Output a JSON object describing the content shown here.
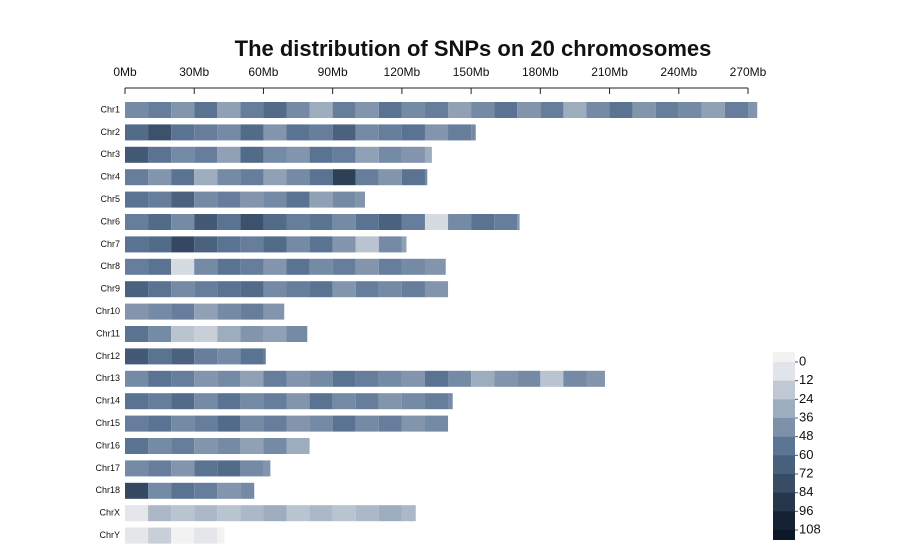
{
  "chart_data": {
    "type": "chromosome-density",
    "title": "The distribution of SNPs on 20 chromosomes",
    "xlim": [
      0,
      270
    ],
    "xticks": [
      {
        "value": 0,
        "label": "0Mb"
      },
      {
        "value": 30,
        "label": "30Mb"
      },
      {
        "value": 60,
        "label": "60Mb"
      },
      {
        "value": 90,
        "label": "90Mb"
      },
      {
        "value": 120,
        "label": "120Mb"
      },
      {
        "value": 150,
        "label": "150Mb"
      },
      {
        "value": 180,
        "label": "180Mb"
      },
      {
        "value": 210,
        "label": "210Mb"
      },
      {
        "value": 240,
        "label": "240Mb"
      },
      {
        "value": 270,
        "label": "270Mb"
      }
    ],
    "bin_size": 10,
    "colors": [
      "#f2f2f2",
      "#5b7595",
      "#0c1828"
    ],
    "legend_ticks": [
      0,
      12,
      24,
      36,
      48,
      60,
      72,
      84,
      96,
      108
    ],
    "chromosomes": [
      {
        "name": "Chr1",
        "length": 274,
        "density": [
          45,
          50,
          40,
          55,
          35,
          50,
          60,
          45,
          30,
          50,
          40,
          55,
          45,
          50,
          35,
          45,
          55,
          40,
          50,
          30,
          45,
          55,
          40,
          50,
          45,
          35,
          50,
          40
        ]
      },
      {
        "name": "Chr2",
        "length": 152,
        "density": [
          60,
          75,
          55,
          50,
          45,
          60,
          40,
          55,
          50,
          65,
          45,
          50,
          55,
          40,
          50,
          45
        ]
      },
      {
        "name": "Chr3",
        "length": 133,
        "density": [
          70,
          55,
          45,
          50,
          35,
          60,
          45,
          40,
          55,
          50,
          35,
          45,
          40,
          30
        ]
      },
      {
        "name": "Chr4",
        "length": 131,
        "density": [
          50,
          40,
          55,
          30,
          45,
          50,
          35,
          45,
          55,
          85,
          50,
          40,
          55,
          45
        ]
      },
      {
        "name": "Chr5",
        "length": 104,
        "density": [
          55,
          50,
          65,
          45,
          50,
          40,
          45,
          55,
          35,
          45,
          40
        ]
      },
      {
        "name": "Chr6",
        "length": 171,
        "density": [
          50,
          60,
          45,
          70,
          55,
          75,
          60,
          50,
          55,
          45,
          55,
          65,
          50,
          10,
          45,
          55,
          50,
          40
        ]
      },
      {
        "name": "Chr7",
        "length": 122,
        "density": [
          55,
          60,
          80,
          65,
          55,
          50,
          60,
          45,
          55,
          40,
          20,
          45,
          35
        ]
      },
      {
        "name": "Chr8",
        "length": 139,
        "density": [
          50,
          55,
          10,
          45,
          55,
          50,
          40,
          55,
          45,
          50,
          40,
          50,
          45,
          40
        ]
      },
      {
        "name": "Chr9",
        "length": 140,
        "density": [
          65,
          55,
          45,
          50,
          55,
          60,
          45,
          50,
          55,
          40,
          50,
          45,
          50,
          40
        ]
      },
      {
        "name": "Chr10",
        "length": 69,
        "density": [
          40,
          45,
          50,
          35,
          45,
          50,
          40
        ]
      },
      {
        "name": "Chr11",
        "length": 79,
        "density": [
          55,
          45,
          20,
          15,
          30,
          40,
          35,
          45
        ]
      },
      {
        "name": "Chr12",
        "length": 61,
        "density": [
          70,
          55,
          65,
          50,
          45,
          55,
          50
        ]
      },
      {
        "name": "Chr13",
        "length": 208,
        "density": [
          45,
          55,
          50,
          40,
          45,
          35,
          50,
          40,
          45,
          55,
          50,
          45,
          40,
          55,
          45,
          30,
          40,
          45,
          20,
          45,
          40
        ]
      },
      {
        "name": "Chr14",
        "length": 142,
        "density": [
          55,
          50,
          60,
          45,
          55,
          45,
          50,
          40,
          55,
          45,
          50,
          40,
          45,
          50,
          45
        ]
      },
      {
        "name": "Chr15",
        "length": 140,
        "density": [
          50,
          55,
          45,
          50,
          60,
          45,
          50,
          40,
          45,
          55,
          45,
          50,
          40,
          45
        ]
      },
      {
        "name": "Chr16",
        "length": 80,
        "density": [
          55,
          45,
          50,
          40,
          45,
          35,
          45,
          30
        ]
      },
      {
        "name": "Chr17",
        "length": 63,
        "density": [
          45,
          50,
          40,
          55,
          60,
          45,
          40
        ]
      },
      {
        "name": "Chr18",
        "length": 56,
        "density": [
          80,
          45,
          55,
          50,
          40,
          45
        ]
      },
      {
        "name": "ChrX",
        "length": 126,
        "density": [
          5,
          25,
          20,
          25,
          20,
          25,
          30,
          20,
          25,
          20,
          25,
          30,
          25
        ]
      },
      {
        "name": "ChrY",
        "length": 43,
        "density": [
          5,
          15,
          0,
          5,
          0
        ]
      }
    ]
  }
}
